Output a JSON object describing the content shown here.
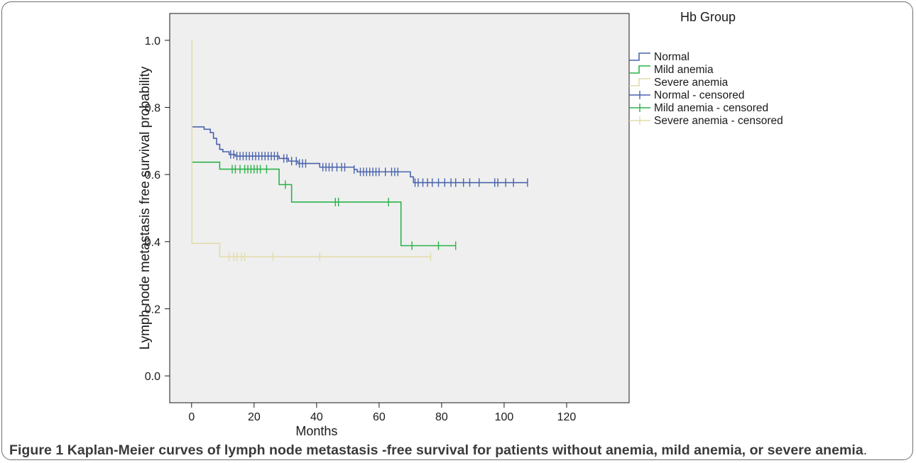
{
  "figure": {
    "caption_label": "Figure 1",
    "caption_text": "Kaplan-Meier curves of lymph node metastasis -free survival for patients without anemia, mild anemia, or severe anemia",
    "caption_end": "."
  },
  "chart_data": {
    "type": "line",
    "step": true,
    "title": "",
    "xlabel": "Months",
    "ylabel": "Lymph node metastasis free survival probability",
    "xlim": [
      -7,
      140
    ],
    "ylim": [
      -0.08,
      1.08
    ],
    "xticks": [
      0,
      20,
      40,
      60,
      80,
      100,
      120
    ],
    "yticks": [
      0.0,
      0.2,
      0.4,
      0.6,
      0.8,
      1.0
    ],
    "xtick_labels": [
      "0",
      "20",
      "40",
      "60",
      "80",
      "100",
      "120"
    ],
    "ytick_labels": [
      "0.0",
      "0.2",
      "0.4",
      "0.6",
      "0.8",
      "1.0"
    ],
    "grid": false,
    "background": "#efefef",
    "legend": {
      "title": "Hb Group",
      "position": "right-outside-top",
      "entries": [
        {
          "label": "Normal",
          "color": "#4a64ad",
          "kind": "step"
        },
        {
          "label": "Mild anemia",
          "color": "#2bb24a",
          "kind": "step"
        },
        {
          "label": "Severe anemia",
          "color": "#e2dcaa",
          "kind": "step"
        },
        {
          "label": "Normal - censored",
          "color": "#4a64ad",
          "kind": "censor"
        },
        {
          "label": "Mild anemia - censored",
          "color": "#2bb24a",
          "kind": "censor"
        },
        {
          "label": "Severe anemia - censored",
          "color": "#e2dcaa",
          "kind": "censor"
        }
      ]
    },
    "series": [
      {
        "name": "Normal",
        "color": "#4a64ad",
        "steps": [
          [
            0,
            0.742
          ],
          [
            4,
            0.735
          ],
          [
            6,
            0.725
          ],
          [
            7,
            0.708
          ],
          [
            8,
            0.69
          ],
          [
            9,
            0.675
          ],
          [
            10,
            0.668
          ],
          [
            12,
            0.66
          ],
          [
            14,
            0.655
          ],
          [
            28,
            0.648
          ],
          [
            31,
            0.64
          ],
          [
            34,
            0.633
          ],
          [
            41,
            0.622
          ],
          [
            52,
            0.615
          ],
          [
            53,
            0.608
          ],
          [
            70,
            0.593
          ],
          [
            71,
            0.576
          ],
          [
            107.5,
            0.576
          ]
        ],
        "censored": [
          12.5,
          13.5,
          14.5,
          15.5,
          16.5,
          17.5,
          18.5,
          19.5,
          20.5,
          21.5,
          22.5,
          23.5,
          24.5,
          25.5,
          26.5,
          27.5,
          29.5,
          30.5,
          32,
          33.5,
          34.5,
          35.5,
          36.5,
          42,
          43,
          44,
          45,
          46.5,
          48,
          49,
          52,
          54,
          55,
          56,
          57,
          58,
          59,
          60,
          62,
          64,
          65,
          66,
          71.5,
          72.5,
          74,
          75.5,
          77,
          79,
          81,
          83,
          84.5,
          87,
          89,
          92,
          97,
          98,
          100.5,
          103,
          107.5
        ]
      },
      {
        "name": "Mild anemia",
        "color": "#2bb24a",
        "steps": [
          [
            0,
            0.637
          ],
          [
            9,
            0.616
          ],
          [
            28,
            0.57
          ],
          [
            32,
            0.518
          ],
          [
            67,
            0.388
          ],
          [
            84.5,
            0.388
          ]
        ],
        "censored": [
          13,
          14,
          15.5,
          17,
          18,
          19,
          20,
          21,
          22,
          24,
          30,
          46,
          47,
          63,
          70.5,
          79,
          84.5
        ]
      },
      {
        "name": "Severe anemia",
        "color": "#e2dcaa",
        "steps": [
          [
            0,
            1.0
          ],
          [
            0.1,
            0.395
          ],
          [
            9,
            0.355
          ],
          [
            76.5,
            0.355
          ]
        ],
        "censored": [
          12,
          13.5,
          14.5,
          16,
          17,
          26,
          41,
          76.5
        ]
      }
    ]
  }
}
